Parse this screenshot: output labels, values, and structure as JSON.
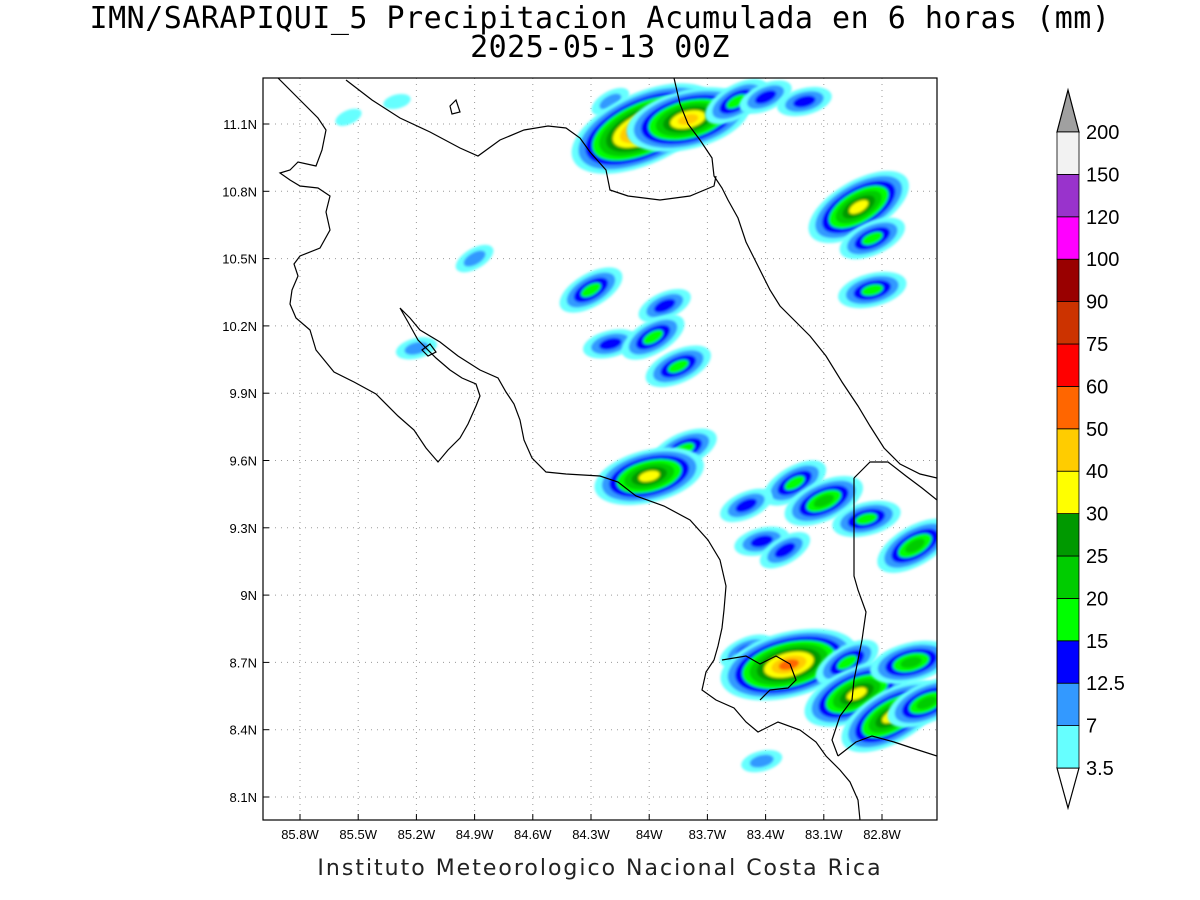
{
  "title": {
    "line1": "IMN/SARAPIQUI_5 Precipitacion Acumulada en 6 horas (mm)",
    "line2": "2025-05-13 00Z"
  },
  "credit": "Instituto Meteorologico Nacional Costa Rica",
  "map": {
    "lon_range": [
      -86.1,
      -82.35
    ],
    "lat_range": [
      8.0,
      11.3
    ],
    "lon_ticks": [
      {
        "value": -85.8,
        "label": "85.8W"
      },
      {
        "value": -85.5,
        "label": "85.5W"
      },
      {
        "value": -85.2,
        "label": "85.2W"
      },
      {
        "value": -84.9,
        "label": "84.9W"
      },
      {
        "value": -84.6,
        "label": "84.6W"
      },
      {
        "value": -84.3,
        "label": "84.3W"
      },
      {
        "value": -84.0,
        "label": "84W"
      },
      {
        "value": -83.7,
        "label": "83.7W"
      },
      {
        "value": -83.4,
        "label": "83.4W"
      },
      {
        "value": -83.1,
        "label": "83.1W"
      },
      {
        "value": -82.8,
        "label": "82.8W"
      }
    ],
    "lat_ticks": [
      {
        "value": 8.1,
        "label": "8.1N"
      },
      {
        "value": 8.4,
        "label": "8.4N"
      },
      {
        "value": 8.7,
        "label": "8.7N"
      },
      {
        "value": 9.0,
        "label": "9N"
      },
      {
        "value": 9.3,
        "label": "9.3N"
      },
      {
        "value": 9.6,
        "label": "9.6N"
      },
      {
        "value": 9.9,
        "label": "9.9N"
      },
      {
        "value": 10.2,
        "label": "10.2N"
      },
      {
        "value": 10.5,
        "label": "10.5N"
      },
      {
        "value": 10.8,
        "label": "10.8N"
      },
      {
        "value": 11.1,
        "label": "11.1N"
      }
    ],
    "grid": true
  },
  "colorbar": {
    "levels": [
      {
        "label": "3.5",
        "color": "#66ffff"
      },
      {
        "label": "7",
        "color": "#3399ff"
      },
      {
        "label": "12.5",
        "color": "#0000ff"
      },
      {
        "label": "15",
        "color": "#00ff00"
      },
      {
        "label": "20",
        "color": "#00cc00"
      },
      {
        "label": "25",
        "color": "#009900"
      },
      {
        "label": "30",
        "color": "#ffff00"
      },
      {
        "label": "40",
        "color": "#ffcc00"
      },
      {
        "label": "50",
        "color": "#ff6600"
      },
      {
        "label": "60",
        "color": "#ff0000"
      },
      {
        "label": "75",
        "color": "#cc3300"
      },
      {
        "label": "90",
        "color": "#990000"
      },
      {
        "label": "100",
        "color": "#ff00ff"
      },
      {
        "label": "120",
        "color": "#9933cc"
      },
      {
        "label": "150",
        "color": "#f2f2f2"
      },
      {
        "label": "200",
        "color": "#a0a0a0"
      }
    ]
  },
  "precip_cells": [
    {
      "lon": -85.55,
      "lat": 11.13,
      "level": 3.5
    },
    {
      "lon": -85.3,
      "lat": 11.2,
      "level": 3.5
    },
    {
      "lon": -84.2,
      "lat": 11.2,
      "level": 7
    },
    {
      "lon": -84.03,
      "lat": 11.08,
      "level": 60
    },
    {
      "lon": -83.8,
      "lat": 11.12,
      "level": 40
    },
    {
      "lon": -83.55,
      "lat": 11.2,
      "level": 15
    },
    {
      "lon": -83.4,
      "lat": 11.22,
      "level": 12.5
    },
    {
      "lon": -83.2,
      "lat": 11.2,
      "level": 12.5
    },
    {
      "lon": -82.92,
      "lat": 10.73,
      "level": 30
    },
    {
      "lon": -82.85,
      "lat": 10.59,
      "level": 15
    },
    {
      "lon": -82.85,
      "lat": 10.36,
      "level": 15
    },
    {
      "lon": -84.3,
      "lat": 10.36,
      "level": 15
    },
    {
      "lon": -83.92,
      "lat": 10.29,
      "level": 12.5
    },
    {
      "lon": -84.2,
      "lat": 10.12,
      "level": 12.5
    },
    {
      "lon": -83.98,
      "lat": 10.15,
      "level": 15
    },
    {
      "lon": -83.85,
      "lat": 10.02,
      "level": 15
    },
    {
      "lon": -85.2,
      "lat": 10.1,
      "level": 7
    },
    {
      "lon": -84.9,
      "lat": 10.5,
      "level": 7
    },
    {
      "lon": -83.82,
      "lat": 9.65,
      "level": 15
    },
    {
      "lon": -84.0,
      "lat": 9.53,
      "level": 30
    },
    {
      "lon": -83.25,
      "lat": 9.5,
      "level": 15
    },
    {
      "lon": -83.1,
      "lat": 9.42,
      "level": 20
    },
    {
      "lon": -82.88,
      "lat": 9.34,
      "level": 15
    },
    {
      "lon": -82.63,
      "lat": 9.22,
      "level": 20
    },
    {
      "lon": -83.5,
      "lat": 9.4,
      "level": 12.5
    },
    {
      "lon": -83.42,
      "lat": 9.24,
      "level": 12.5
    },
    {
      "lon": -83.3,
      "lat": 9.2,
      "level": 12.5
    },
    {
      "lon": -83.5,
      "lat": 8.75,
      "level": 12.5
    },
    {
      "lon": -83.28,
      "lat": 8.69,
      "level": 50
    },
    {
      "lon": -82.98,
      "lat": 8.7,
      "level": 15
    },
    {
      "lon": -82.93,
      "lat": 8.56,
      "level": 30
    },
    {
      "lon": -82.65,
      "lat": 8.7,
      "level": 20
    },
    {
      "lon": -82.75,
      "lat": 8.46,
      "level": 30
    },
    {
      "lon": -82.57,
      "lat": 8.52,
      "level": 20
    },
    {
      "lon": -83.42,
      "lat": 8.26,
      "level": 7
    }
  ]
}
